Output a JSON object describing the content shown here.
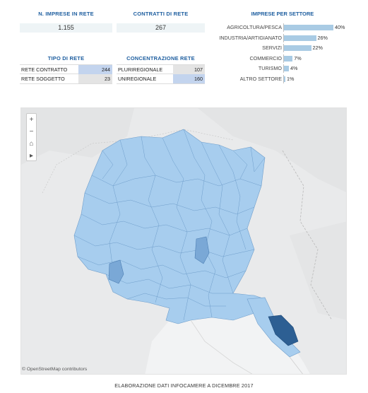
{
  "kpis": {
    "imprese": {
      "title": "N. IMPRESE IN RETE",
      "value": "1.155"
    },
    "contratti": {
      "title": "CONTRATTI DI RETE",
      "value": "267"
    }
  },
  "tipo_rete": {
    "title": "TIPO DI RETE",
    "rows": [
      {
        "label": "RETE CONTRATTO",
        "value": "244",
        "color": "#c3d4ee"
      },
      {
        "label": "RETE SOGGETTO",
        "value": "23",
        "color": "#e4e4e4"
      }
    ]
  },
  "concentrazione": {
    "title": "CONCENTRAZIONE RETE",
    "rows": [
      {
        "label": "PLURIREGIONALE",
        "value": "107",
        "color": "#e4e4e4"
      },
      {
        "label": "UNIREGIONALE",
        "value": "160",
        "color": "#c3d4ee"
      }
    ]
  },
  "settori": {
    "title": "IMPRESE PER SETTORE",
    "rows": [
      {
        "label": "AGRICOLTURA/PESCA",
        "pct": "40%",
        "value": 40
      },
      {
        "label": "INDUSTRIA/ARTIGIANATO",
        "pct": "26%",
        "value": 26
      },
      {
        "label": "SERVIZI",
        "pct": "22%",
        "value": 22
      },
      {
        "label": "COMMERCIO",
        "pct": "7%",
        "value": 7
      },
      {
        "label": "TURISMO",
        "pct": "4%",
        "value": 4
      },
      {
        "label": "ALTRO SETTORE",
        "pct": "1%",
        "value": 1
      }
    ]
  },
  "map": {
    "zoom_in": "+",
    "zoom_out": "−",
    "home": "⌂",
    "play": "▸",
    "attribution": "© OpenStreetMap contributors",
    "colors": {
      "light": "#a7cdee",
      "mid": "#7aa8d6",
      "dark": "#2d5f93",
      "water": "#f2f3f4",
      "land": "#e9eaeb"
    }
  },
  "footer": "ELABORAZIONE DATI INFOCAMERE A DICEMBRE 2017"
}
